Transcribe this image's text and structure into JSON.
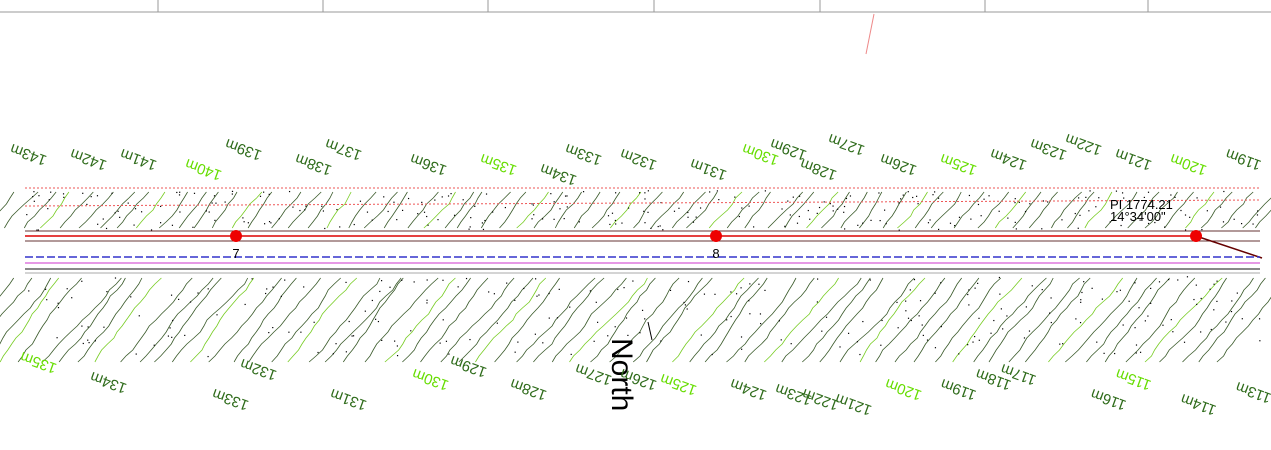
{
  "top_contour_labels": [
    "143m",
    "142m",
    "141m",
    "140m",
    "139m",
    "138m",
    "137m",
    "136m",
    "135m",
    "134m",
    "133m",
    "132m",
    "131m",
    "130m",
    "129m",
    "128m",
    "127m",
    "126m",
    "125m",
    "124m",
    "123m",
    "122m",
    "121m",
    "120m",
    "119m"
  ],
  "bottom_contour_labels": [
    "135m",
    "134m",
    "133m",
    "132m",
    "131m",
    "130m",
    "129m",
    "128m",
    "127m",
    "126m",
    "125m",
    "124m",
    "123m",
    "122m",
    "121m",
    "120m",
    "119m",
    "118m",
    "117m",
    "116m",
    "115m",
    "114m",
    "113m"
  ],
  "stations": [
    "7",
    "8"
  ],
  "pi": {
    "label": "PI 1774.21",
    "angle": "14°34'00\""
  },
  "north": "North"
}
